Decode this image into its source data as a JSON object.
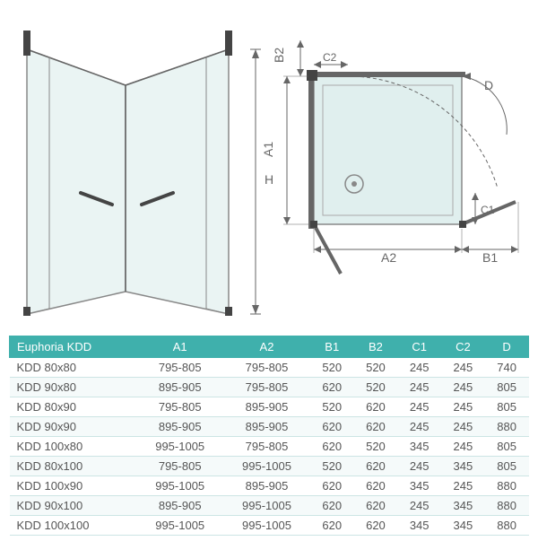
{
  "diagram": {
    "labels": {
      "H": "H",
      "A1": "A1",
      "A2": "A2",
      "B1": "B1",
      "B2": "B2",
      "C1": "C1",
      "C2": "C2",
      "D": "D"
    },
    "colors": {
      "line": "#666666",
      "glass_fill": "#eaf4f3",
      "glass_stroke": "#888888",
      "hinge": "#444444",
      "arrow": "#666666",
      "tray_fill": "#e0efee",
      "tray_stroke": "#888888"
    }
  },
  "table": {
    "header_bg": "#3fb0ac",
    "header_color": "#ffffff",
    "row_alt_bg": "#f5fafa",
    "border_color": "#cce5e4",
    "text_color": "#555555",
    "columns": [
      "Euphoria KDD",
      "A1",
      "A2",
      "B1",
      "B2",
      "C1",
      "C2",
      "D"
    ],
    "rows": [
      [
        "KDD 80x80",
        "795-805",
        "795-805",
        "520",
        "520",
        "245",
        "245",
        "740"
      ],
      [
        "KDD 90x80",
        "895-905",
        "795-805",
        "620",
        "520",
        "245",
        "245",
        "805"
      ],
      [
        "KDD 80x90",
        "795-805",
        "895-905",
        "520",
        "620",
        "245",
        "245",
        "805"
      ],
      [
        "KDD 90x90",
        "895-905",
        "895-905",
        "620",
        "620",
        "245",
        "245",
        "880"
      ],
      [
        "KDD 100x80",
        "995-1005",
        "795-805",
        "620",
        "520",
        "345",
        "245",
        "805"
      ],
      [
        "KDD 80x100",
        "795-805",
        "995-1005",
        "520",
        "620",
        "245",
        "345",
        "805"
      ],
      [
        "KDD 100x90",
        "995-1005",
        "895-905",
        "620",
        "620",
        "345",
        "245",
        "880"
      ],
      [
        "KDD 90x100",
        "895-905",
        "995-1005",
        "620",
        "620",
        "245",
        "345",
        "880"
      ],
      [
        "KDD 100x100",
        "995-1005",
        "995-1005",
        "620",
        "620",
        "345",
        "345",
        "880"
      ]
    ]
  }
}
